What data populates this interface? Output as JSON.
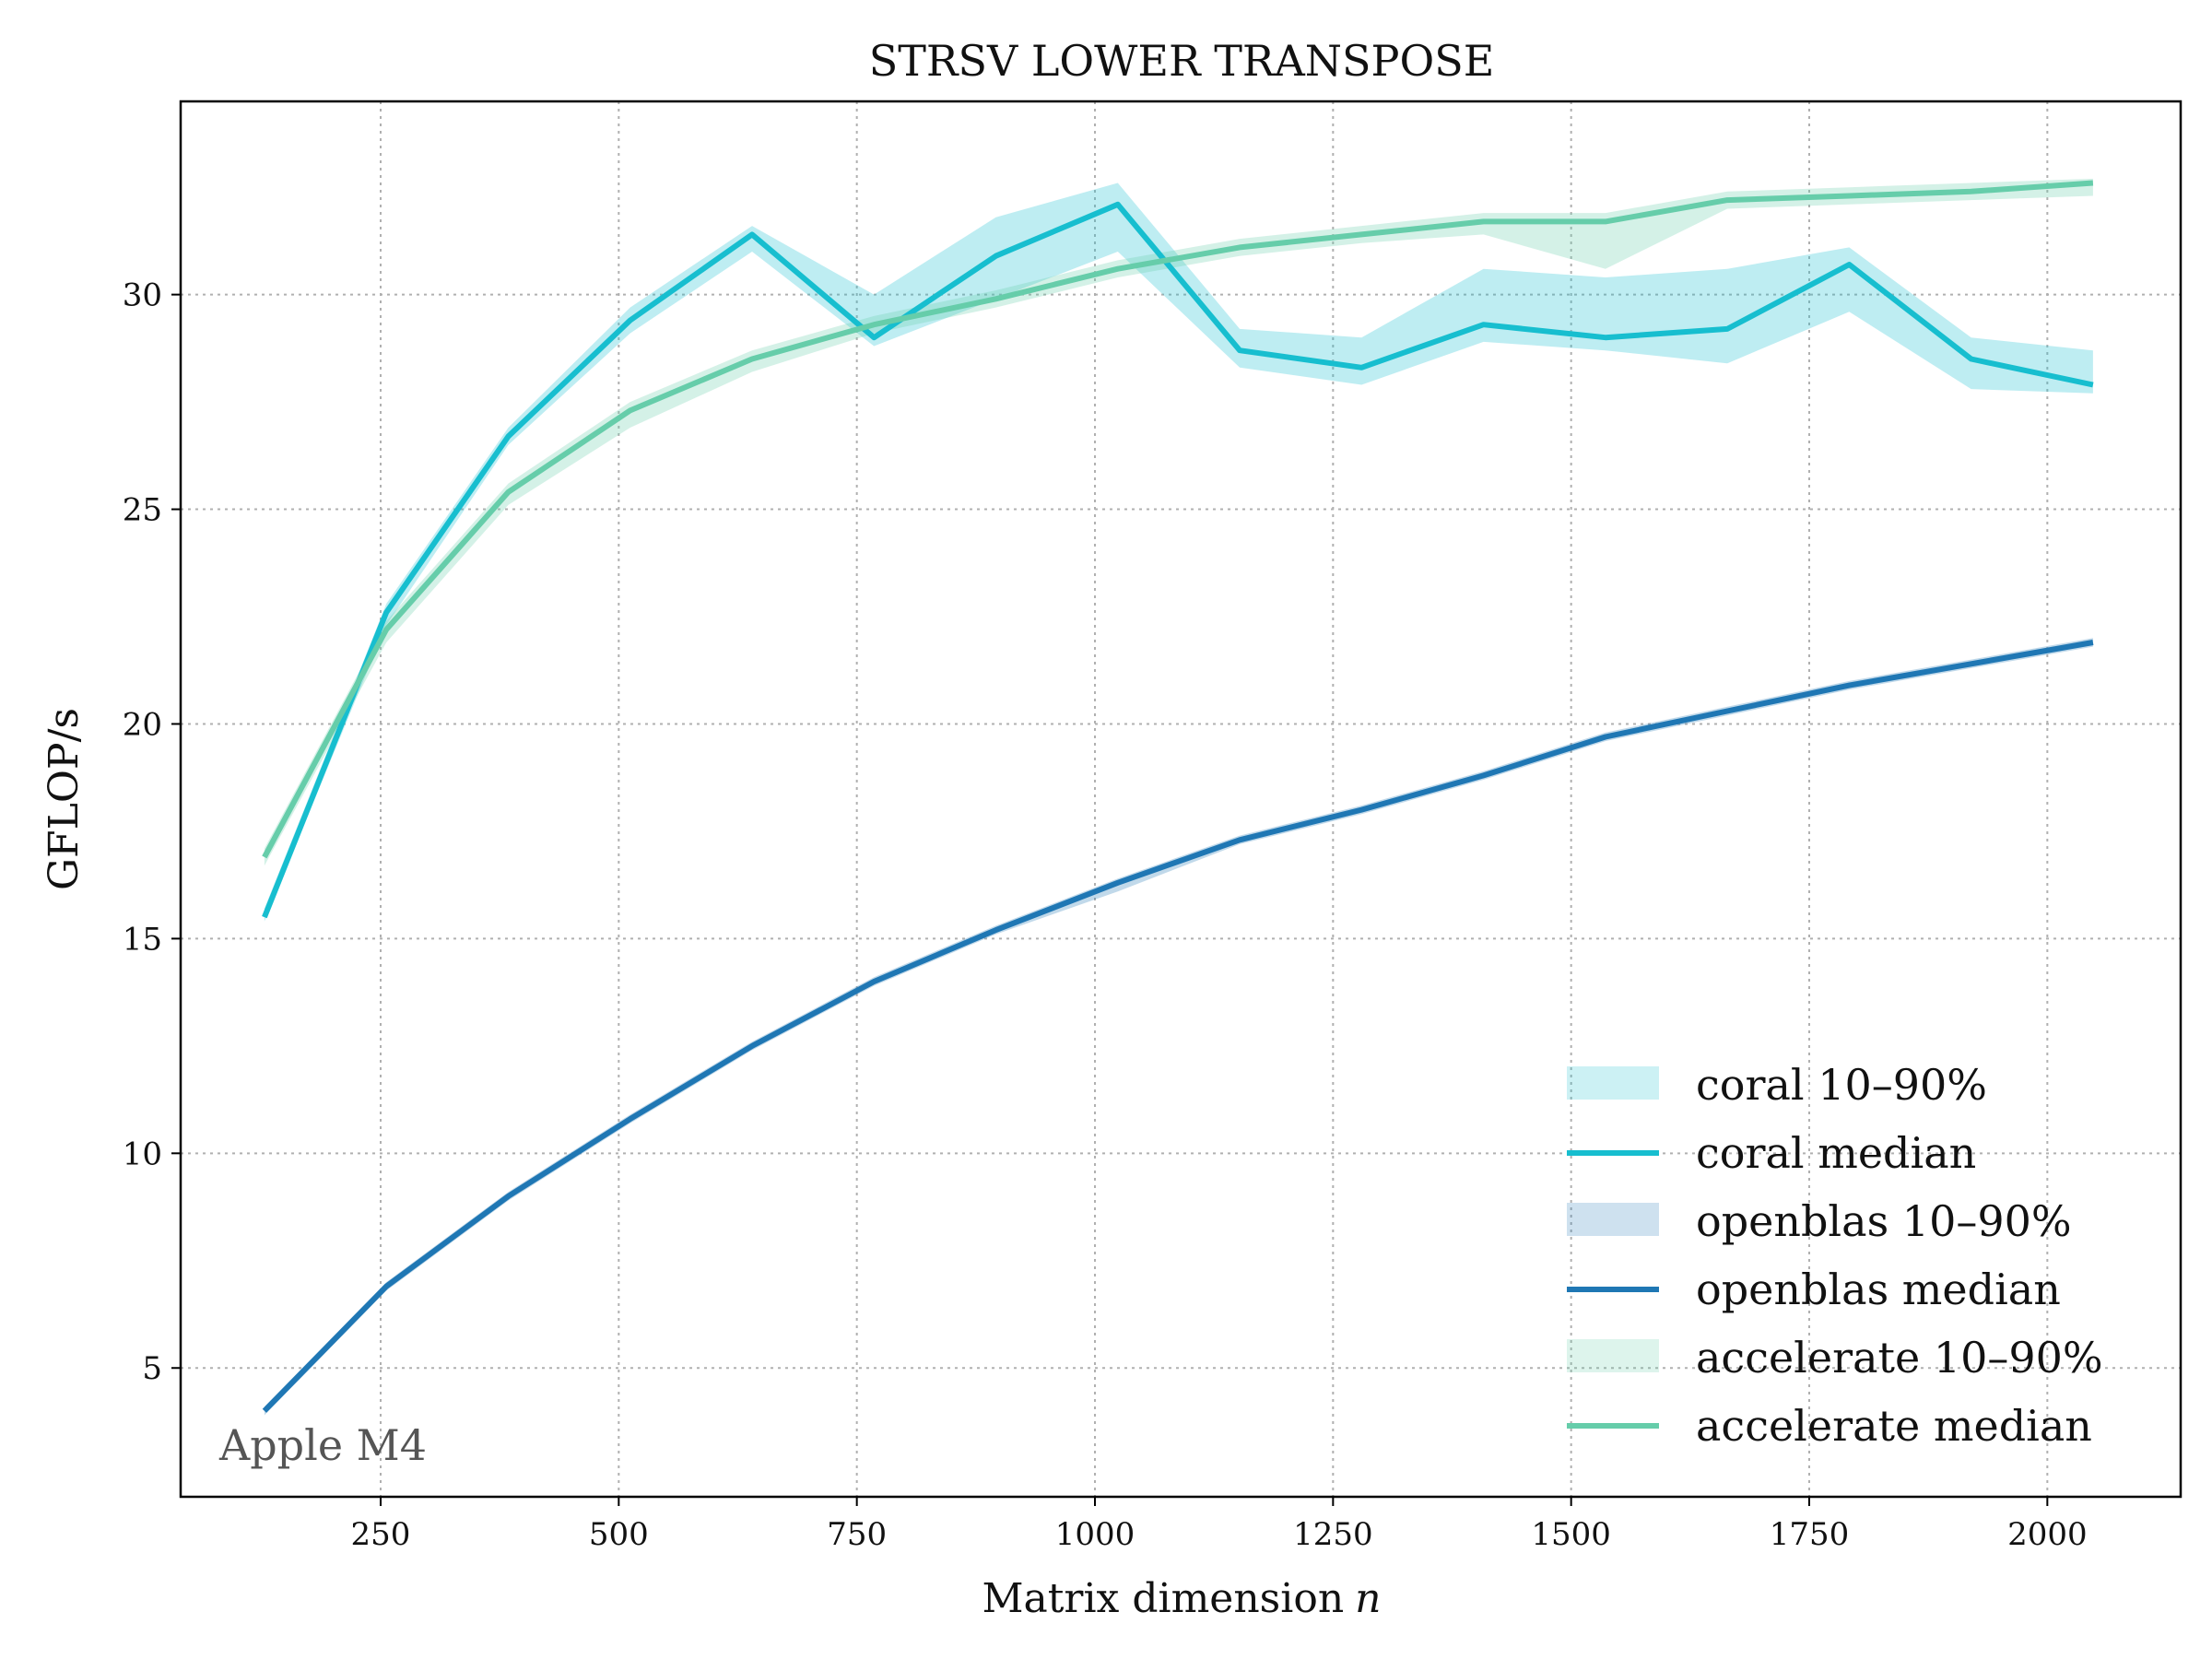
{
  "chart_data": {
    "type": "line",
    "title": "STRSV LOWER TRANSPOSE",
    "xlabel": "Matrix dimension",
    "xlabel_var": "n",
    "ylabel": "GFLOP/s",
    "annotation": "Apple M4",
    "xlim": [
      40,
      2140
    ],
    "ylim": [
      2,
      34.5
    ],
    "xticks": [
      250,
      500,
      750,
      1000,
      1250,
      1500,
      1750,
      2000
    ],
    "yticks": [
      5,
      10,
      15,
      20,
      25,
      30
    ],
    "grid": true,
    "legend_placement": "lower-right",
    "x": [
      128,
      256,
      384,
      512,
      640,
      768,
      896,
      1024,
      1152,
      1280,
      1408,
      1536,
      1664,
      1792,
      1920,
      2048
    ],
    "series": [
      {
        "name": "coral",
        "color": "#17becf",
        "median": [
          15.5,
          22.6,
          26.7,
          29.4,
          31.4,
          29.0,
          30.9,
          32.1,
          28.7,
          28.3,
          29.3,
          29.0,
          29.2,
          30.7,
          28.5,
          27.9
        ],
        "p10": [
          15.4,
          22.3,
          26.5,
          29.1,
          31.0,
          28.8,
          29.9,
          31.0,
          28.3,
          27.9,
          28.9,
          28.7,
          28.4,
          29.6,
          27.8,
          27.7
        ],
        "p90": [
          15.7,
          22.8,
          26.9,
          29.7,
          31.6,
          30.0,
          31.8,
          32.6,
          29.2,
          29.0,
          30.6,
          30.4,
          30.6,
          31.1,
          29.0,
          28.7
        ],
        "median_label": "coral median",
        "band_label": "coral 10–90%"
      },
      {
        "name": "openblas",
        "color": "#1f77b4",
        "median": [
          4.0,
          6.9,
          9.0,
          10.8,
          12.5,
          14.0,
          15.2,
          16.3,
          17.3,
          18.0,
          18.8,
          19.7,
          20.3,
          20.9,
          21.4,
          21.9
        ],
        "p10": [
          3.9,
          6.8,
          8.9,
          10.7,
          12.4,
          13.9,
          15.1,
          16.1,
          17.2,
          17.9,
          18.7,
          19.6,
          20.2,
          20.8,
          21.3,
          21.8
        ],
        "p90": [
          4.1,
          7.0,
          9.1,
          10.9,
          12.6,
          14.1,
          15.3,
          16.4,
          17.4,
          18.1,
          18.9,
          19.8,
          20.4,
          21.0,
          21.5,
          22.0
        ],
        "median_label": "openblas median",
        "band_label": "openblas 10–90%"
      },
      {
        "name": "accelerate",
        "color": "#66cdaa",
        "median": [
          16.9,
          22.2,
          25.4,
          27.3,
          28.5,
          29.3,
          29.9,
          30.6,
          31.1,
          31.4,
          31.7,
          31.7,
          32.2,
          32.3,
          32.4,
          32.6
        ],
        "p10": [
          16.7,
          21.9,
          25.1,
          26.9,
          28.2,
          29.1,
          29.7,
          30.4,
          30.9,
          31.2,
          31.4,
          30.6,
          32.0,
          32.1,
          32.2,
          32.3
        ],
        "p90": [
          17.1,
          22.4,
          25.6,
          27.5,
          28.7,
          29.5,
          30.1,
          30.8,
          31.3,
          31.6,
          31.9,
          31.9,
          32.4,
          32.5,
          32.6,
          32.7
        ],
        "median_label": "accelerate median",
        "band_label": "accelerate 10–90%"
      }
    ]
  }
}
